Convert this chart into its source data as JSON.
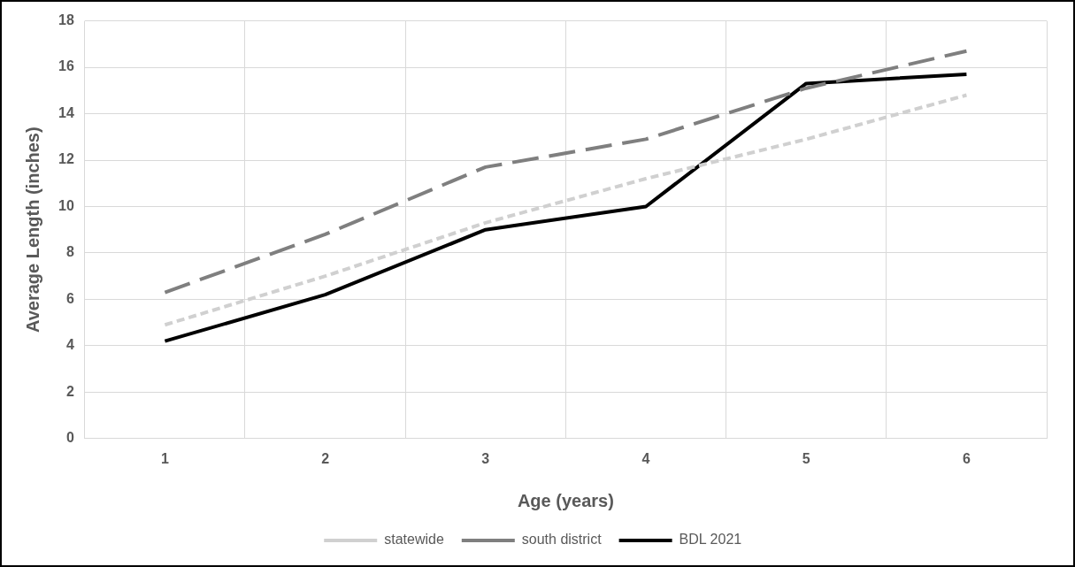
{
  "chart_data": {
    "type": "line",
    "xlabel": "Age (years)",
    "ylabel": "Average Length (inches)",
    "categories": [
      "1",
      "2",
      "3",
      "4",
      "5",
      "6"
    ],
    "series": [
      {
        "name": "statewide",
        "color": "#d0d0d0",
        "line_style": "dotted",
        "values": [
          4.9,
          7.0,
          9.3,
          11.2,
          12.9,
          14.8
        ]
      },
      {
        "name": "south district",
        "color": "#7f7f7f",
        "line_style": "dashed",
        "values": [
          6.3,
          8.8,
          11.7,
          12.9,
          15.1,
          16.7
        ]
      },
      {
        "name": "BDL 2021",
        "color": "#000000",
        "line_style": "solid",
        "values": [
          4.2,
          6.2,
          9.0,
          10.0,
          15.3,
          15.7
        ]
      }
    ],
    "ylim": [
      0,
      18
    ],
    "yticks": [
      0,
      2,
      4,
      6,
      8,
      10,
      12,
      14,
      16,
      18
    ],
    "grid": true,
    "legend": "bottom",
    "marker": "none"
  }
}
